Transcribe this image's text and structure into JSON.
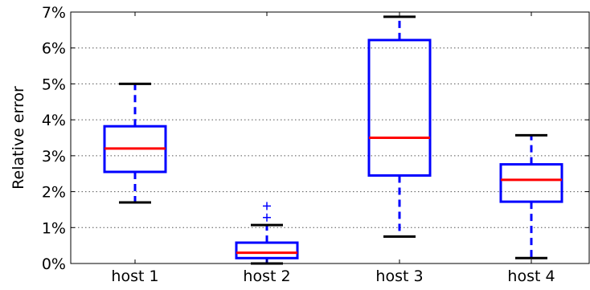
{
  "chart_data": {
    "type": "boxplot",
    "title": "",
    "xlabel": "",
    "ylabel": "Relative error",
    "ylim": [
      0,
      7
    ],
    "yticks": [
      0,
      1,
      2,
      3,
      4,
      5,
      6,
      7
    ],
    "ytick_labels": [
      "0%",
      "1%",
      "2%",
      "3%",
      "4%",
      "5%",
      "6%",
      "7%"
    ],
    "grid": "horizontal dotted",
    "categories": [
      "host 1",
      "host 2",
      "host 3",
      "host 4"
    ],
    "boxes": [
      {
        "whisker_low": 1.7,
        "q1": 2.55,
        "median": 3.2,
        "q3": 3.82,
        "whisker_high": 5.0,
        "outliers": []
      },
      {
        "whisker_low": 0.0,
        "q1": 0.15,
        "median": 0.3,
        "q3": 0.58,
        "whisker_high": 1.07,
        "outliers": [
          1.28,
          1.6
        ]
      },
      {
        "whisker_low": 0.75,
        "q1": 2.45,
        "median": 3.5,
        "q3": 6.22,
        "whisker_high": 6.87,
        "outliers": []
      },
      {
        "whisker_low": 0.15,
        "q1": 1.72,
        "median": 2.33,
        "q3": 2.76,
        "whisker_high": 3.57,
        "outliers": []
      }
    ],
    "colors": {
      "box": "#0000ff",
      "whisker": "#0000ff",
      "cap": "#000000",
      "median": "#ff0000",
      "outlier": "#0000ff",
      "grid": "#555555"
    }
  }
}
